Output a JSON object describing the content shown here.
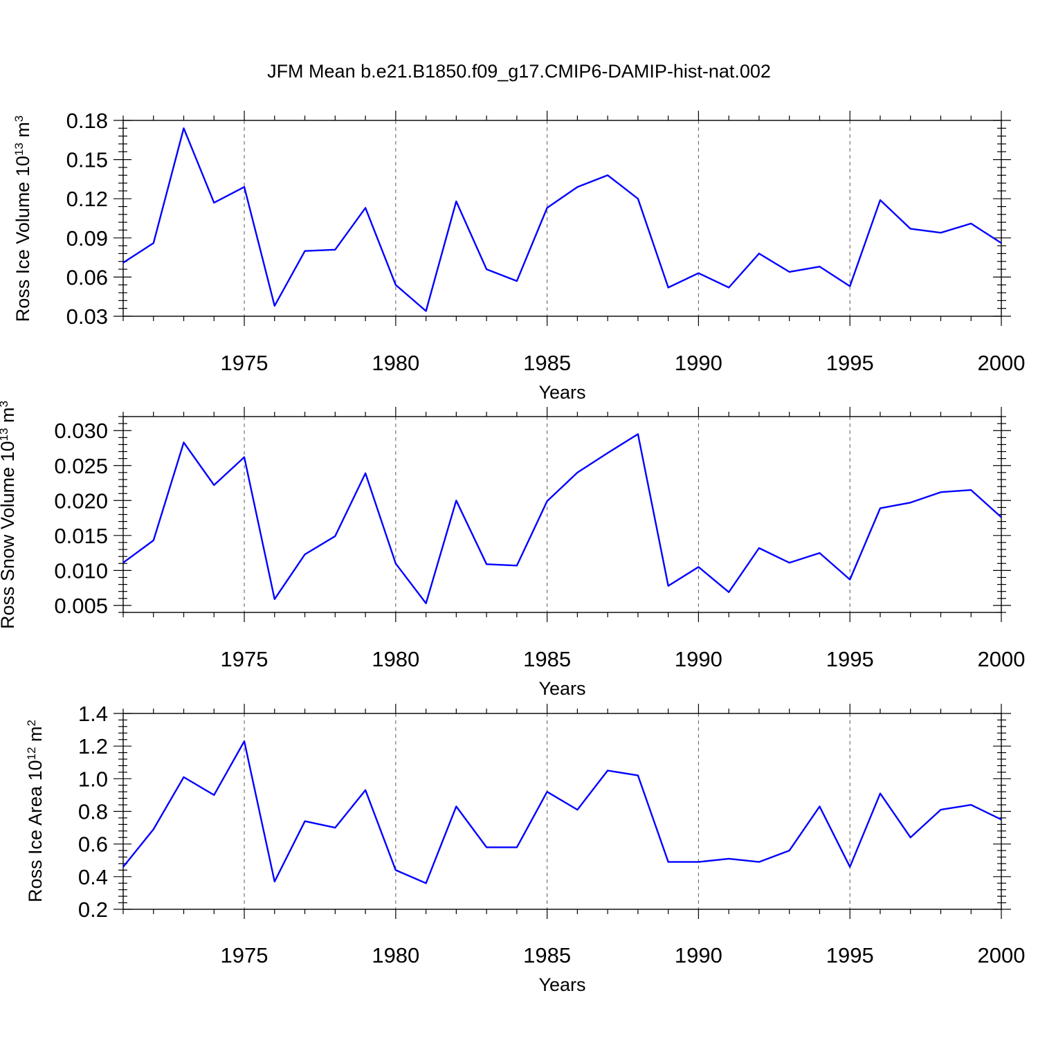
{
  "title": "JFM Mean b.e21.B1850.f09_g17.CMIP6-DAMIP-hist-nat.002",
  "colors": {
    "line": "#0000ff",
    "axis": "#000000",
    "grid": "#666666"
  },
  "chart_data": [
    {
      "type": "line",
      "ylabel_main": "Ross Ice Volume 10",
      "ylabel_exp": "13",
      "ylabel_unit": " m",
      "ylabel_unit_exp": "3",
      "xlabel": "Years",
      "xlim": [
        1971,
        2000
      ],
      "ylim": [
        0.03,
        0.18
      ],
      "yticks": [
        0.03,
        0.06,
        0.09,
        0.12,
        0.15,
        0.18
      ],
      "ytick_labels": [
        "0.03",
        "0.06",
        "0.09",
        "0.12",
        "0.15",
        "0.18"
      ],
      "xticks": [
        1975,
        1980,
        1985,
        1990,
        1995,
        2000
      ],
      "xtick_labels": [
        "1975",
        "1980",
        "1985",
        "1990",
        "1995",
        "2000"
      ],
      "grid": "vertical dashed at major x ticks",
      "x": [
        1971,
        1972,
        1973,
        1974,
        1975,
        1976,
        1977,
        1978,
        1979,
        1980,
        1981,
        1982,
        1983,
        1984,
        1985,
        1986,
        1987,
        1988,
        1989,
        1990,
        1991,
        1992,
        1993,
        1994,
        1995,
        1996,
        1997,
        1998,
        1999,
        2000
      ],
      "values": [
        0.071,
        0.086,
        0.174,
        0.117,
        0.129,
        0.038,
        0.08,
        0.081,
        0.113,
        0.054,
        0.034,
        0.118,
        0.066,
        0.057,
        0.113,
        0.129,
        0.138,
        0.12,
        0.052,
        0.063,
        0.052,
        0.078,
        0.064,
        0.068,
        0.053,
        0.119,
        0.097,
        0.094,
        0.101,
        0.086
      ]
    },
    {
      "type": "line",
      "ylabel_main": "Ross Snow Volume 10",
      "ylabel_exp": "13",
      "ylabel_unit": " m",
      "ylabel_unit_exp": "3",
      "xlabel": "Years",
      "xlim": [
        1971,
        2000
      ],
      "ylim": [
        0.004,
        0.032
      ],
      "yticks": [
        0.005,
        0.01,
        0.015,
        0.02,
        0.025,
        0.03
      ],
      "ytick_labels": [
        "0.005",
        "0.010",
        "0.015",
        "0.020",
        "0.025",
        "0.030"
      ],
      "xticks": [
        1975,
        1980,
        1985,
        1990,
        1995,
        2000
      ],
      "xtick_labels": [
        "1975",
        "1980",
        "1985",
        "1990",
        "1995",
        "2000"
      ],
      "grid": "vertical dashed at major x ticks",
      "x": [
        1971,
        1972,
        1973,
        1974,
        1975,
        1976,
        1977,
        1978,
        1979,
        1980,
        1981,
        1982,
        1983,
        1984,
        1985,
        1986,
        1987,
        1988,
        1989,
        1990,
        1991,
        1992,
        1993,
        1994,
        1995,
        1996,
        1997,
        1998,
        1999,
        2000
      ],
      "values": [
        0.0111,
        0.0143,
        0.0283,
        0.0222,
        0.0262,
        0.0059,
        0.0123,
        0.0149,
        0.0239,
        0.011,
        0.0053,
        0.02,
        0.0109,
        0.0107,
        0.0199,
        0.024,
        0.0268,
        0.0295,
        0.0078,
        0.0105,
        0.0069,
        0.0132,
        0.0111,
        0.0125,
        0.0087,
        0.0189,
        0.0197,
        0.0212,
        0.0215,
        0.0176
      ]
    },
    {
      "type": "line",
      "ylabel_main": "Ross Ice Area 10",
      "ylabel_exp": "12",
      "ylabel_unit": " m",
      "ylabel_unit_exp": "2",
      "xlabel": "Years",
      "xlim": [
        1971,
        2000
      ],
      "ylim": [
        0.2,
        1.4
      ],
      "yticks": [
        0.2,
        0.4,
        0.6,
        0.8,
        1.0,
        1.2,
        1.4
      ],
      "ytick_labels": [
        "0.2",
        "0.4",
        "0.6",
        "0.8",
        "1.0",
        "1.2",
        "1.4"
      ],
      "xticks": [
        1975,
        1980,
        1985,
        1990,
        1995,
        2000
      ],
      "xtick_labels": [
        "1975",
        "1980",
        "1985",
        "1990",
        "1995",
        "2000"
      ],
      "grid": "vertical dashed at major x ticks",
      "x": [
        1971,
        1972,
        1973,
        1974,
        1975,
        1976,
        1977,
        1978,
        1979,
        1980,
        1981,
        1982,
        1983,
        1984,
        1985,
        1986,
        1987,
        1988,
        1989,
        1990,
        1991,
        1992,
        1993,
        1994,
        1995,
        1996,
        1997,
        1998,
        1999,
        2000
      ],
      "values": [
        0.46,
        0.69,
        1.01,
        0.9,
        1.23,
        0.37,
        0.74,
        0.7,
        0.93,
        0.44,
        0.36,
        0.83,
        0.58,
        0.58,
        0.92,
        0.81,
        1.05,
        1.02,
        0.49,
        0.49,
        0.51,
        0.49,
        0.56,
        0.83,
        0.46,
        0.91,
        0.64,
        0.81,
        0.84,
        0.75
      ]
    }
  ]
}
